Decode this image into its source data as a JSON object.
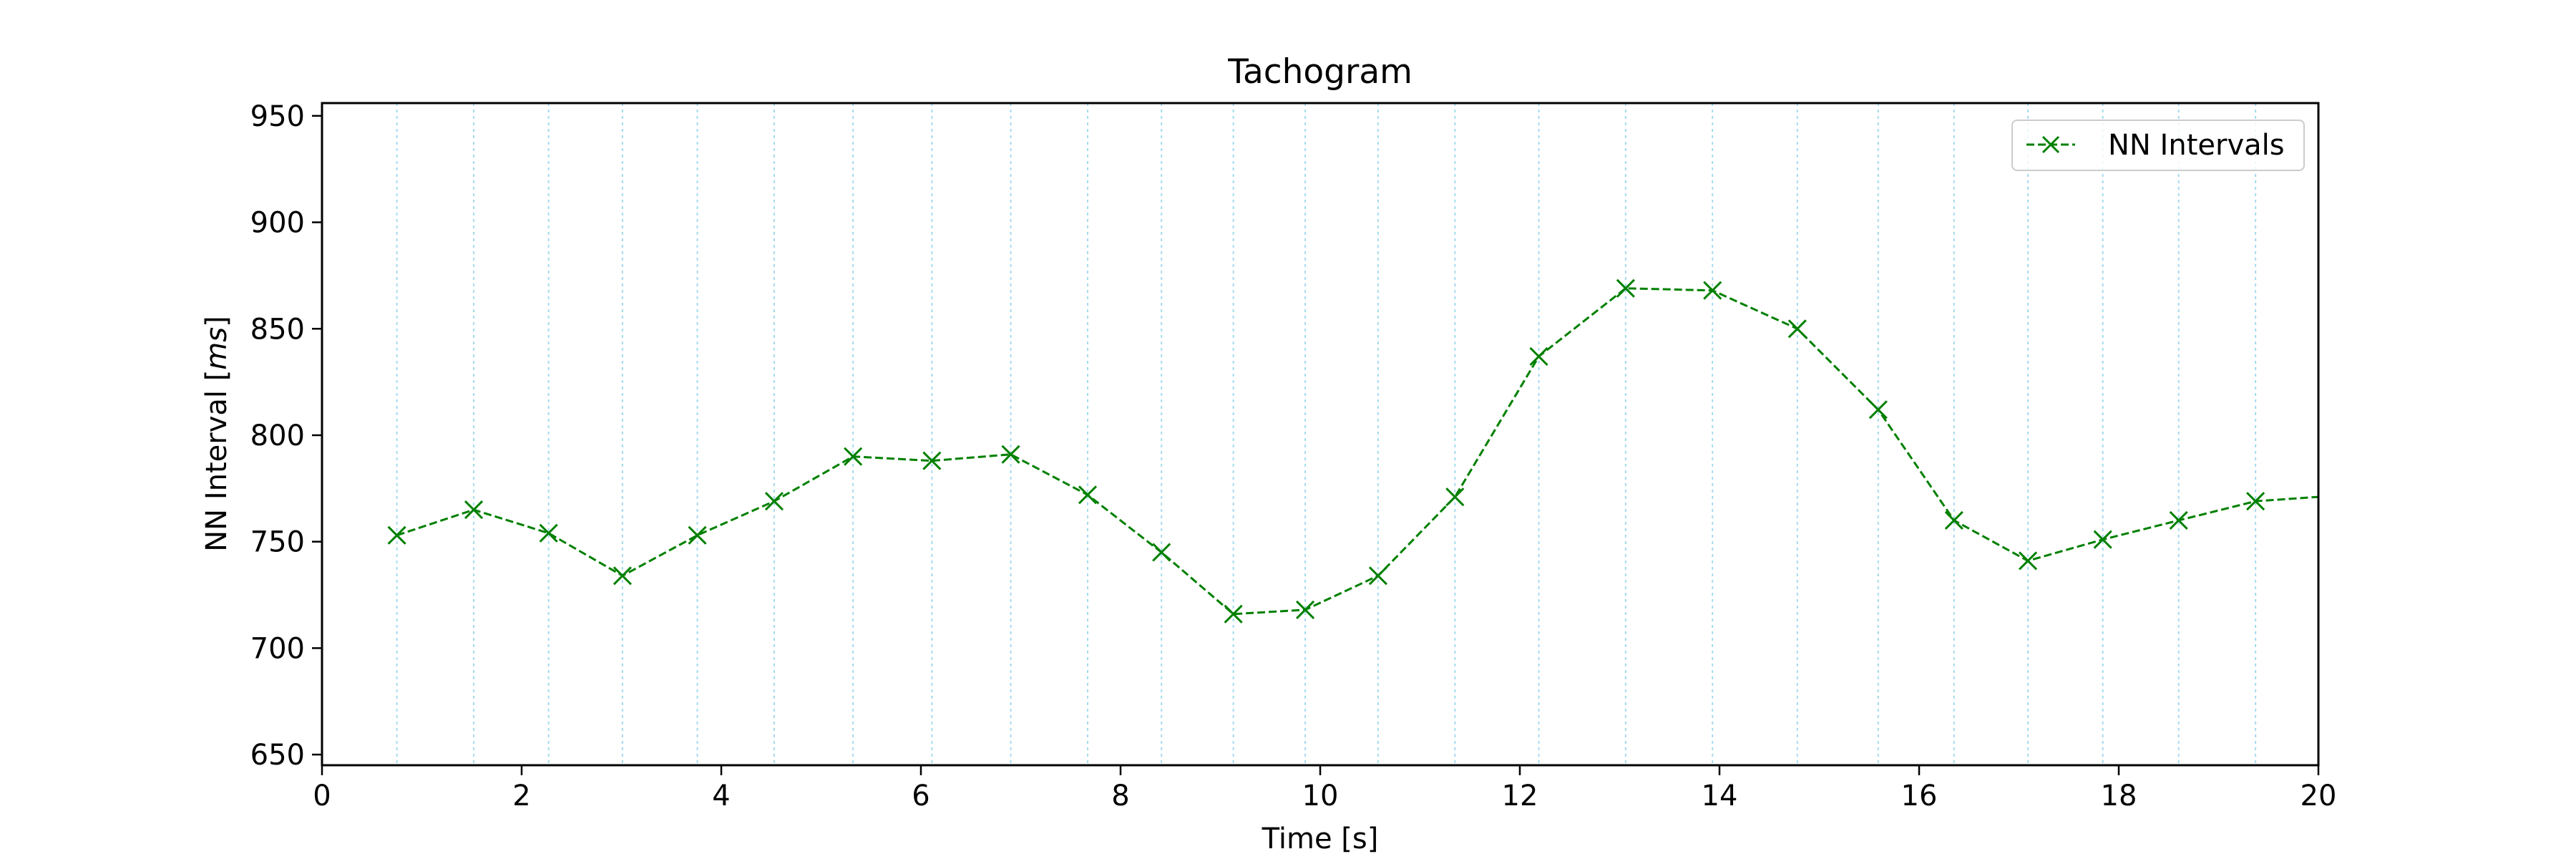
{
  "chart_data": {
    "type": "line",
    "title": "Tachogram",
    "xlabel": "Time [s]",
    "ylabel_prefix": "NN Interval [",
    "ylabel_unit": "ms",
    "ylabel_suffix": "]",
    "xlim": [
      0,
      20
    ],
    "ylim": [
      645,
      956
    ],
    "xticks": [
      0,
      2,
      4,
      6,
      8,
      10,
      12,
      14,
      16,
      18,
      20
    ],
    "yticks": [
      650,
      700,
      750,
      800,
      850,
      900,
      950
    ],
    "grid": "vertical dotted at each beat",
    "legend_position": "top-right",
    "series": [
      {
        "name": "NN Intervals",
        "color": "#008000",
        "line_style": "dashed",
        "marker": "x",
        "x": [
          0.75,
          1.52,
          2.27,
          3.01,
          3.76,
          4.53,
          5.32,
          6.11,
          6.9,
          7.67,
          8.41,
          9.13,
          9.85,
          10.58,
          11.35,
          12.19,
          13.06,
          13.93,
          14.78,
          15.59,
          16.35,
          17.09,
          17.84,
          18.6,
          19.37,
          20.3
        ],
        "y": [
          753,
          765,
          754,
          734,
          753,
          769,
          790,
          788,
          791,
          772,
          745,
          716,
          718,
          734,
          771,
          837,
          869,
          868,
          850,
          812,
          760,
          741,
          751,
          760,
          769,
          772
        ]
      }
    ],
    "colors": {
      "series": "#008000",
      "grid": "#87ceeb",
      "axes": "#000000"
    }
  }
}
